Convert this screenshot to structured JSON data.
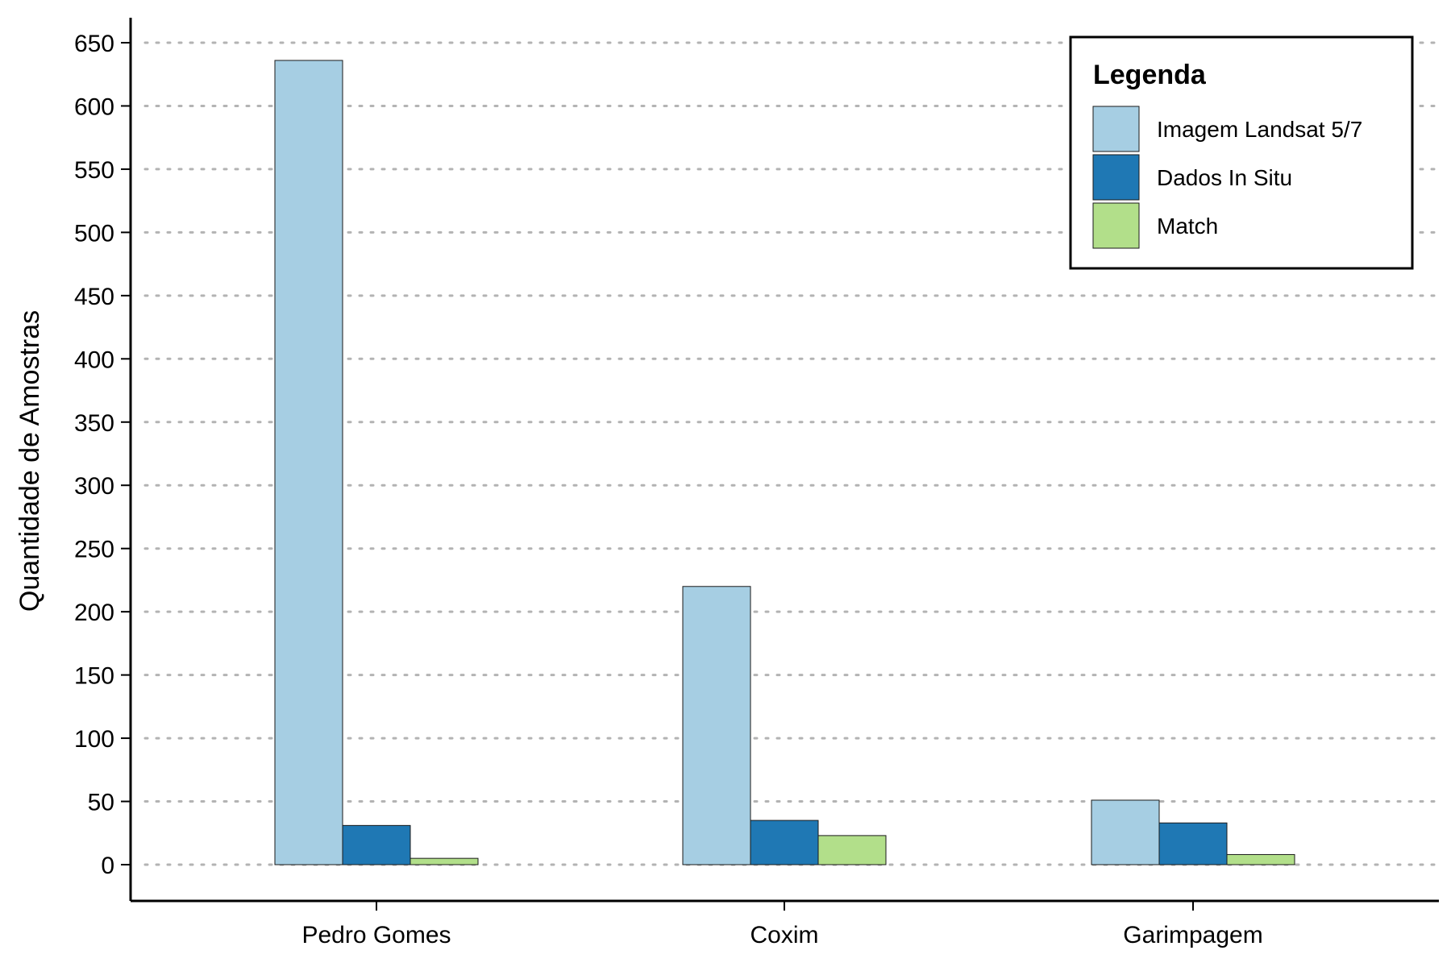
{
  "chart_data": {
    "type": "bar",
    "title": "",
    "xlabel": "",
    "ylabel": "Quantidade de Amostras",
    "categories": [
      "Pedro Gomes",
      "Coxim",
      "Garimpagem"
    ],
    "series": [
      {
        "name": "Imagem Landsat 5/7",
        "color": "#a6cee3",
        "values": [
          636,
          220,
          51
        ]
      },
      {
        "name": "Dados In Situ",
        "color": "#1f78b4",
        "values": [
          31,
          35,
          33
        ]
      },
      {
        "name": "Match",
        "color": "#b2df8a",
        "values": [
          5,
          23,
          8
        ]
      }
    ],
    "ylim": [
      -30,
      665
    ],
    "yticks": [
      0,
      50,
      100,
      150,
      200,
      250,
      300,
      350,
      400,
      450,
      500,
      550,
      600,
      650
    ],
    "grid": "horizontal dotted",
    "legend": {
      "title": "Legenda",
      "placement": "top-right"
    }
  }
}
